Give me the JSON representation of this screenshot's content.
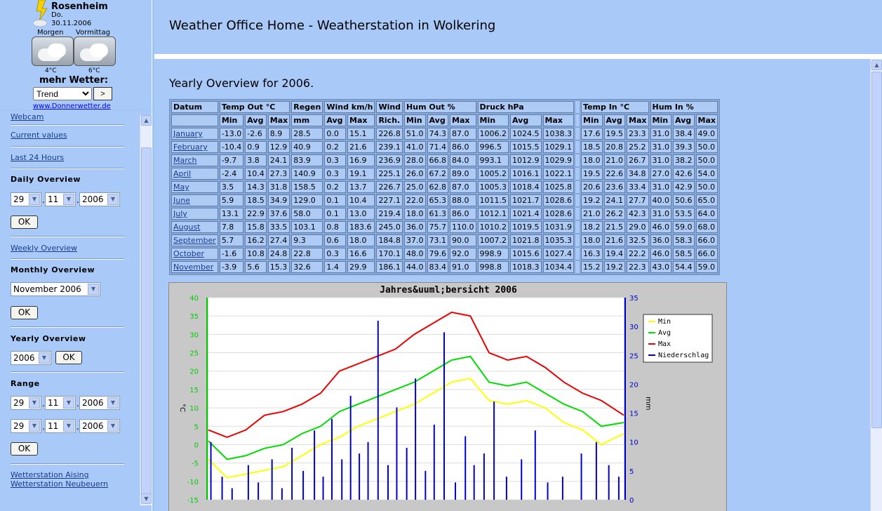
{
  "widget": {
    "city": "Rosenheim",
    "day": "Do.",
    "date": "30.11.2006",
    "morning_label": "Morgen",
    "forenoon_label": "Vormittag",
    "morning_temp": "4°C",
    "forenoon_temp": "6°C",
    "more": "mehr Wetter:",
    "select_value": "Trend",
    "go_label": ">",
    "url": "www.Donnerwetter.de",
    "icons": [
      "lightning-cloud-icon",
      "cloudy-icon",
      "cloudy-icon"
    ]
  },
  "nav": {
    "webcam": "Webcam",
    "current": "Current values",
    "last24": "Last 24 Hours",
    "daily_head": "Daily Overview",
    "daily_day": "29",
    "daily_month": "11",
    "daily_year": "2006",
    "ok": "OK",
    "weekly": "Weekly Overview",
    "monthly_head": "Monthly Overview",
    "monthly_value": "November 2006",
    "yearly_head": "Yearly Overview",
    "yearly_value": "2006",
    "range_head": "Range",
    "range_from_day": "29",
    "range_from_month": "11",
    "range_from_year": "2006",
    "range_to_day": "29",
    "range_to_month": "11",
    "range_to_year": "2006",
    "aising": "Wetterstation Aising",
    "neubeuern": "Wetterstation Neubeuern"
  },
  "banner": {
    "title": "Weather Office Home - Weatherstation in Wolkering"
  },
  "main": {
    "heading": "Yearly Overview for 2006.",
    "groups": [
      "Datum",
      "Temp Out °C",
      "Regen",
      "Wind km/h",
      "Wind",
      "Hum Out %",
      "Druck hPa",
      "Temp In °C",
      "Hum In %"
    ],
    "subheaders": [
      "Min",
      "Avg",
      "Max",
      "mm",
      "Avg",
      "Max",
      "Rich.",
      "Min",
      "Avg",
      "Max",
      "Min",
      "Avg",
      "Max",
      "Min",
      "Avg",
      "Max",
      "Min",
      "Avg",
      "Max"
    ],
    "rows": [
      [
        "January",
        "-13.0",
        "-2.6",
        "8.9",
        "28.5",
        "0.0",
        "15.1",
        "226.8",
        "51.0",
        "74.3",
        "87.0",
        "1006.2",
        "1024.5",
        "1038.3",
        "17.6",
        "19.5",
        "23.3",
        "31.0",
        "38.4",
        "49.0"
      ],
      [
        "February",
        "-10.4",
        "0.9",
        "12.9",
        "40.9",
        "0.2",
        "21.6",
        "239.1",
        "41.0",
        "71.4",
        "86.0",
        "996.5",
        "1015.5",
        "1029.1",
        "18.5",
        "20.8",
        "25.2",
        "31.0",
        "39.3",
        "50.0"
      ],
      [
        "March",
        "-9.7",
        "3.8",
        "24.1",
        "83.9",
        "0.3",
        "16.9",
        "236.9",
        "28.0",
        "66.8",
        "84.0",
        "993.1",
        "1012.9",
        "1029.9",
        "18.0",
        "21.0",
        "26.7",
        "31.0",
        "38.2",
        "50.0"
      ],
      [
        "April",
        "-2.4",
        "10.4",
        "27.3",
        "140.9",
        "0.3",
        "19.1",
        "225.1",
        "26.0",
        "67.2",
        "89.0",
        "1005.2",
        "1016.1",
        "1022.1",
        "19.5",
        "22.6",
        "34.8",
        "27.0",
        "42.6",
        "54.0"
      ],
      [
        "May",
        "3.5",
        "14.3",
        "31.8",
        "158.5",
        "0.2",
        "13.7",
        "226.7",
        "25.0",
        "62.8",
        "87.0",
        "1005.3",
        "1018.4",
        "1025.8",
        "20.6",
        "23.6",
        "33.4",
        "31.0",
        "42.9",
        "50.0"
      ],
      [
        "June",
        "5.9",
        "18.5",
        "34.9",
        "129.0",
        "0.1",
        "10.4",
        "227.1",
        "22.0",
        "65.3",
        "88.0",
        "1011.5",
        "1021.7",
        "1028.6",
        "19.2",
        "24.1",
        "27.7",
        "40.0",
        "50.6",
        "65.0"
      ],
      [
        "July",
        "13.1",
        "22.9",
        "37.6",
        "58.0",
        "0.1",
        "13.0",
        "219.4",
        "18.0",
        "61.3",
        "86.0",
        "1012.1",
        "1021.4",
        "1028.6",
        "21.0",
        "26.2",
        "42.3",
        "31.0",
        "53.5",
        "64.0"
      ],
      [
        "August",
        "7.8",
        "15.8",
        "33.5",
        "103.1",
        "0.8",
        "183.6",
        "245.0",
        "36.0",
        "75.7",
        "110.0",
        "1010.2",
        "1019.5",
        "1031.9",
        "18.2",
        "21.5",
        "29.0",
        "46.0",
        "59.0",
        "68.0"
      ],
      [
        "September",
        "5.7",
        "16.2",
        "27.4",
        "9.3",
        "0.6",
        "18.0",
        "184.8",
        "37.0",
        "73.1",
        "90.0",
        "1007.2",
        "1021.8",
        "1035.3",
        "18.0",
        "21.6",
        "32.5",
        "36.0",
        "58.3",
        "66.0"
      ],
      [
        "October",
        "-1.6",
        "10.8",
        "24.8",
        "22.8",
        "0.3",
        "16.6",
        "170.1",
        "48.0",
        "79.6",
        "92.0",
        "998.9",
        "1015.6",
        "1027.4",
        "16.3",
        "19.4",
        "22.2",
        "46.0",
        "58.5",
        "66.0"
      ],
      [
        "November",
        "-3.9",
        "5.6",
        "15.3",
        "32.6",
        "1.4",
        "29.9",
        "186.1",
        "44.0",
        "83.4",
        "91.0",
        "998.8",
        "1018.3",
        "1034.4",
        "15.2",
        "19.2",
        "22.3",
        "43.0",
        "54.4",
        "59.0"
      ]
    ]
  },
  "chart_data": {
    "type": "line",
    "title": "Jahres&uuml;bersicht 2006",
    "ylabel": "°C",
    "y2label": "mm",
    "ylim": [
      -15,
      40
    ],
    "y2lim": [
      0,
      35
    ],
    "yticks": [
      "40",
      "35",
      "30",
      "25",
      "20",
      "15",
      "10",
      "5",
      "0",
      "-5",
      "-10",
      "-15"
    ],
    "y2ticks": [
      "35",
      "30",
      "25",
      "20",
      "15",
      "10",
      "5",
      "0"
    ],
    "legend_position": "top-right",
    "x_start_day": 1,
    "x_end_day": 334,
    "colors": {
      "Min": "#ffff00",
      "Avg": "#00dd00",
      "Max": "#ee0000",
      "Niederschlag": "#0000cc",
      "left_axis": "#00cc00",
      "right_axis": "#0000cc"
    },
    "series": [
      {
        "name": "Min",
        "axis": "left",
        "days": [
          1,
          16,
          31,
          46,
          61,
          76,
          91,
          106,
          121,
          136,
          151,
          166,
          181,
          196,
          211,
          226,
          241,
          256,
          271,
          286,
          301,
          316,
          334
        ],
        "values": [
          -4,
          -9,
          -8,
          -7,
          -6,
          -3,
          0,
          2,
          5,
          7,
          9,
          11,
          14,
          17,
          18,
          12,
          11,
          12,
          10,
          6,
          4,
          0,
          3
        ]
      },
      {
        "name": "Avg",
        "axis": "left",
        "days": [
          1,
          16,
          31,
          46,
          61,
          76,
          91,
          106,
          121,
          136,
          151,
          166,
          181,
          196,
          211,
          226,
          241,
          256,
          271,
          286,
          301,
          316,
          334
        ],
        "values": [
          1,
          -4,
          -3,
          -1,
          0,
          3,
          5,
          9,
          11,
          13,
          15,
          17,
          20,
          23,
          24,
          17,
          16,
          17,
          14,
          11,
          9,
          5,
          6
        ]
      },
      {
        "name": "Max",
        "axis": "left",
        "days": [
          1,
          16,
          31,
          46,
          61,
          76,
          91,
          106,
          121,
          136,
          151,
          166,
          181,
          196,
          211,
          226,
          241,
          256,
          271,
          286,
          301,
          316,
          334
        ],
        "values": [
          4,
          2,
          4,
          8,
          9,
          11,
          14,
          20,
          22,
          24,
          26,
          30,
          33,
          36,
          35,
          25,
          23,
          24,
          21,
          17,
          14,
          12,
          8
        ]
      },
      {
        "name": "Niederschlag",
        "axis": "right",
        "days": [
          3,
          12,
          20,
          33,
          41,
          52,
          60,
          68,
          77,
          86,
          93,
          100,
          108,
          115,
          122,
          129,
          137,
          145,
          152,
          160,
          167,
          175,
          182,
          190,
          199,
          207,
          214,
          222,
          230,
          240,
          252,
          263,
          273,
          285,
          300,
          312,
          322,
          330
        ],
        "values": [
          10,
          4,
          2,
          6,
          3,
          7,
          2,
          9,
          5,
          12,
          4,
          14,
          7,
          18,
          8,
          10,
          31,
          6,
          16,
          9,
          21,
          5,
          13,
          29,
          3,
          11,
          6,
          8,
          17,
          4,
          7,
          12,
          3,
          4,
          8,
          10,
          6,
          4
        ]
      }
    ]
  }
}
